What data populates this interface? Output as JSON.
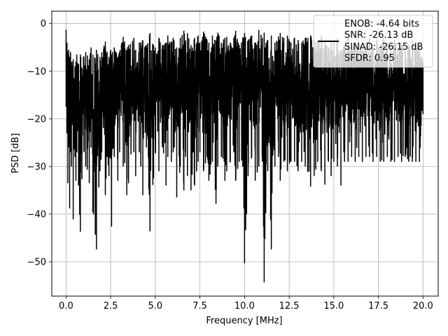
{
  "chart_data": {
    "type": "line",
    "xlabel": "Frequency [MHz]",
    "ylabel": "PSD [dB]",
    "xlim": [
      -0.8,
      20.85
    ],
    "ylim": [
      -57.2,
      2.6
    ],
    "xticks": [
      0.0,
      2.5,
      5.0,
      7.5,
      10.0,
      12.5,
      15.0,
      17.5,
      20.0
    ],
    "xtick_labels": [
      "0.0",
      "2.5",
      "5.0",
      "7.5",
      "10.0",
      "12.5",
      "15.0",
      "17.5",
      "20.0"
    ],
    "yticks": [
      0,
      -10,
      -20,
      -30,
      -40,
      -50
    ],
    "ytick_labels": [
      "0",
      "−10",
      "−20",
      "−30",
      "−40",
      "−50"
    ],
    "grid": true,
    "legend_placement": "top-right",
    "legend_lines": [
      "ENOB: -4.64 bits",
      "SNR: -26.13 dB",
      "SINAD: -26.15 dB",
      "SFDR: 0.95"
    ],
    "series": [
      {
        "color": "#000000",
        "x": [
          0.0,
          0.05,
          0.1,
          0.15,
          0.2,
          0.25,
          0.3,
          0.4,
          0.5,
          0.55,
          0.6,
          0.7,
          0.8,
          1.0,
          1.1,
          1.3,
          1.4,
          1.5,
          1.7,
          1.9,
          2.0,
          2.2,
          2.3,
          2.4,
          2.5,
          2.55,
          2.7,
          2.9,
          3.0,
          3.2,
          3.4,
          3.5,
          3.8,
          3.9,
          4.1,
          4.3,
          4.5,
          4.7,
          4.9,
          5.0,
          5.2,
          5.4,
          5.6,
          5.7,
          5.9,
          6.0,
          6.2,
          6.4,
          6.6,
          6.7,
          6.8,
          7.0,
          7.2,
          7.4,
          7.5,
          7.7,
          7.9,
          8.0,
          8.2,
          8.4,
          8.5,
          8.7,
          8.9,
          9.0,
          9.2,
          9.4,
          9.5,
          9.7,
          9.9,
          10.0,
          10.2,
          10.4,
          10.6,
          10.8,
          11.0,
          11.1,
          11.3,
          11.5,
          11.7,
          11.9,
          12.0,
          12.2,
          12.4,
          12.6,
          12.8,
          13.0,
          13.2,
          13.4,
          13.7,
          13.9,
          14.1,
          14.3,
          14.5,
          14.7,
          14.85,
          15.0,
          15.2,
          15.4,
          15.6,
          15.8,
          16.0,
          16.2,
          16.4,
          16.6,
          16.8,
          17.0,
          17.2,
          17.4,
          17.6,
          17.8,
          18.0,
          18.2,
          18.4,
          18.6,
          18.8,
          19.0,
          19.2,
          19.4,
          19.6,
          19.8,
          20.0
        ],
        "y_upper": [
          -1.3,
          -4.0,
          -6.5,
          -5.5,
          -7.0,
          -6.0,
          -8.0,
          -7.5,
          -9.0,
          -8.0,
          -6.5,
          -8.5,
          -6.5,
          -7.0,
          -6.0,
          -7.5,
          -5.0,
          -6.5,
          -5.5,
          -7.0,
          -6.0,
          -3.8,
          -6.0,
          -7.0,
          -5.5,
          -6.5,
          -5.0,
          -7.0,
          -6.0,
          -2.8,
          -5.5,
          -4.5,
          -3.0,
          -5.5,
          -4.0,
          -3.5,
          -4.5,
          -2.0,
          -4.5,
          -5.0,
          -3.0,
          -4.5,
          -4.0,
          -2.5,
          -4.0,
          -3.0,
          -5.0,
          -3.0,
          -1.5,
          -3.5,
          -2.0,
          -4.5,
          -3.0,
          -2.5,
          -4.0,
          -1.7,
          -3.5,
          -4.0,
          -2.5,
          -3.5,
          -1.9,
          -4.0,
          -3.0,
          -2.8,
          -4.0,
          -3.0,
          -1.5,
          -4.5,
          -3.0,
          -2.0,
          -3.5,
          -2.5,
          -4.0,
          -1.4,
          -3.0,
          -1.9,
          -3.5,
          -2.5,
          -4.0,
          -2.7,
          -2.0,
          -3.0,
          -2.5,
          -4.0,
          -3.0,
          -3.5,
          -4.0,
          -3.0,
          -2.5,
          -3.5,
          -4.0,
          -2.5,
          -3.5,
          -5.0,
          -3.2,
          -4.0,
          -3.0,
          -5.5,
          -4.5,
          -3.0,
          -5.0,
          -4.0,
          -3.5,
          -5.5,
          -4.0,
          -3.0,
          -5.0,
          -3.5,
          -4.5,
          -3.0,
          -4.0,
          -4.6,
          -3.5,
          -5.0,
          -4.0,
          -5.5,
          -4.5,
          -3.5,
          -5.0,
          -4.5,
          -8.0
        ],
        "y_lower": [
          -17.5,
          -23.0,
          -33.5,
          -26.0,
          -38.8,
          -27.0,
          -30.0,
          -41.1,
          -28.0,
          -33.0,
          -27.0,
          -34.0,
          -43.7,
          -27.0,
          -30.0,
          -33.5,
          -26.0,
          -39.6,
          -47.4,
          -31.0,
          -27.0,
          -36.0,
          -28.0,
          -32.0,
          -26.0,
          -42.6,
          -28.0,
          -33.0,
          -27.0,
          -30.0,
          -36.0,
          -33.5,
          -27.0,
          -32.0,
          -27.0,
          -36.0,
          -26.0,
          -43.6,
          -32.5,
          -27.0,
          -31.0,
          -26.0,
          -34.0,
          -28.0,
          -29.0,
          -27.0,
          -36.5,
          -30.0,
          -35.0,
          -28.0,
          -32.0,
          -35.0,
          -34.0,
          -29.0,
          -27.0,
          -31.0,
          -28.0,
          -33.0,
          -29.0,
          -37.8,
          -30.0,
          -28.0,
          -33.0,
          -31.0,
          -29.0,
          -27.0,
          -33.0,
          -29.0,
          -30.0,
          -50.3,
          -32.0,
          -28.0,
          -33.0,
          -30.0,
          -29.0,
          -54.3,
          -31.0,
          -47.4,
          -30.0,
          -28.0,
          -33.0,
          -29.0,
          -31.0,
          -29.0,
          -29.0,
          -31.0,
          -29.0,
          -30.0,
          -34.2,
          -32.0,
          -29.0,
          -31.0,
          -33.8,
          -29.0,
          -32.0,
          -29.0,
          -30.0,
          -34.0,
          -29.0,
          -29.0,
          -28.0,
          -29.0,
          -28.0,
          -29.0,
          -28.0,
          -28.0,
          -29.0,
          -28.0,
          -29.0,
          -29.0,
          -28.0,
          -29.0,
          -29.0,
          -28.0,
          -29.0,
          -28.0,
          -29.0,
          -29.0,
          -29.0,
          -29.0,
          -19.0
        ]
      }
    ]
  }
}
